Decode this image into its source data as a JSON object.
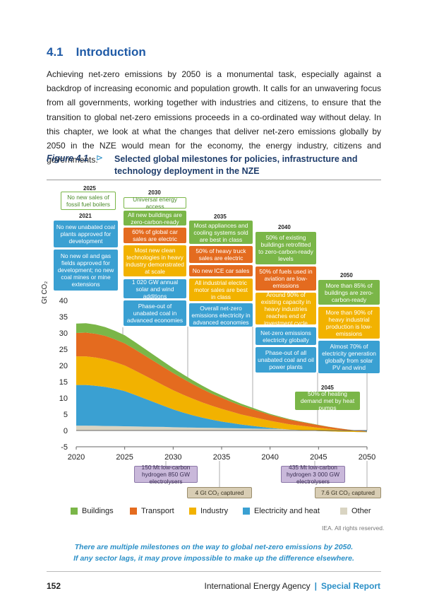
{
  "section": {
    "number": "4.1",
    "title": "Introduction"
  },
  "intro": "Achieving net-zero emissions by 2050 is a monumental task, especially against a backdrop of increasing economic and population growth. It calls for an unwavering focus from all governments, working together with industries and citizens, to ensure that the transition to global net-zero emissions proceeds in a co-ordinated way without delay. In this chapter, we look at what the changes that deliver net-zero emissions globally by 2050 in the NZE would mean for the economy, the energy industry, citizens and governments.",
  "figure": {
    "label": "Figure 4.1",
    "arrow": "⊳",
    "title": "Selected global milestones for policies, infrastructure and technology deployment in the NZE",
    "rights": "IEA. All rights reserved.",
    "caption_line1": "There are multiple milestones on the way to global net-zero emissions by 2050.",
    "caption_line2": "If any sector lags, it may prove impossible to make up the difference elsewhere."
  },
  "milestones": {
    "y2021": {
      "year": "2021",
      "items": [
        "No new unabated coal plants approved for development",
        "No new oil and gas fields approved for development; no new coal mines or mine extensions"
      ]
    },
    "y2025": {
      "year": "2025",
      "items": [
        "No new sales of fossil fuel boilers"
      ]
    },
    "y2030": {
      "year": "2030",
      "items": [
        "Universal energy access",
        "All new buildings are zero-carbon-ready",
        "60% of global car sales are electric",
        "Most new clean technologies in heavy industry demonstrated at scale",
        "1 020 GW annual solar and wind additions",
        "Phase-out of unabated coal in advanced economies"
      ]
    },
    "y2035": {
      "year": "2035",
      "items": [
        "Most appliances and cooling systems sold are best in class",
        "50% of heavy truck sales are electric",
        "No new ICE car sales",
        "All industrial electric motor sales are best in class",
        "Overall net-zero emissions electricity in advanced economies"
      ]
    },
    "y2040": {
      "year": "2040",
      "items": [
        "50% of existing buildings retrofitted to zero-carbon-ready levels",
        "50% of fuels used in aviation are low-emissions",
        "Around 90% of existing capacity in heavy industries reaches end of investment cycle",
        "Net-zero emissions electricity globally",
        "Phase-out of all unabated coal and oil power plants"
      ]
    },
    "y2045": {
      "year": "2045",
      "items": [
        "50% of heating demand met by heat pumps"
      ]
    },
    "y2050": {
      "year": "2050",
      "items": [
        "More than 85% of buildings are zero-carbon-ready",
        "More than 90% of heavy industrial production is low-emissions",
        "Almost 70% of electricity generation globally from solar PV and wind"
      ]
    },
    "bottom": [
      "150 Mt low-carbon hydrogen 850 GW electrolysers",
      "435 Mt low-carbon hydrogen 3 000 GW electrolysers",
      "4 Gt CO₂ captured",
      "7.6 Gt CO₂ captured"
    ]
  },
  "chart_data": {
    "type": "area",
    "stacked": true,
    "ylabel": "Gt CO₂",
    "ylim": [
      -5,
      40
    ],
    "yticks": [
      "-5",
      "0",
      "5",
      "10",
      "15",
      "20",
      "25",
      "30",
      "35",
      "40"
    ],
    "xticks": [
      "2020",
      "2025",
      "2030",
      "2035",
      "2040",
      "2045",
      "2050"
    ],
    "x": [
      2020,
      2021,
      2022,
      2023,
      2024,
      2025,
      2026,
      2027,
      2028,
      2029,
      2030,
      2031,
      2032,
      2033,
      2034,
      2035,
      2036,
      2037,
      2038,
      2039,
      2040,
      2041,
      2042,
      2043,
      2044,
      2045,
      2046,
      2047,
      2048,
      2049,
      2050
    ],
    "series": [
      {
        "name": "Other",
        "color": "#d9d4c2",
        "values": [
          1.5,
          1.5,
          1.45,
          1.4,
          1.35,
          1.3,
          1.25,
          1.2,
          1.15,
          1.1,
          1.0,
          0.95,
          0.9,
          0.85,
          0.8,
          0.75,
          0.7,
          0.65,
          0.6,
          0.55,
          0.5,
          0.45,
          0.4,
          0.35,
          0.3,
          0.25,
          0.2,
          0.15,
          0.1,
          0.05,
          0.0
        ]
      },
      {
        "name": "Electricity and heat",
        "color": "#3aa0d2",
        "values": [
          12.5,
          12.5,
          12.3,
          12.0,
          11.5,
          10.8,
          9.8,
          8.7,
          7.6,
          6.5,
          5.5,
          4.6,
          3.8,
          3.1,
          2.5,
          2.0,
          1.6,
          1.2,
          0.9,
          0.6,
          0.3,
          0.1,
          -0.1,
          -0.2,
          -0.3,
          -0.4,
          -0.45,
          -0.5,
          -0.5,
          -0.5,
          -0.5
        ]
      },
      {
        "name": "Industry",
        "color": "#f2b200",
        "values": [
          8.8,
          8.8,
          8.7,
          8.5,
          8.2,
          7.9,
          7.5,
          7.1,
          6.7,
          6.3,
          5.9,
          5.5,
          5.1,
          4.7,
          4.3,
          3.9,
          3.5,
          3.1,
          2.8,
          2.5,
          2.2,
          1.9,
          1.6,
          1.4,
          1.2,
          1.0,
          0.8,
          0.6,
          0.4,
          0.25,
          0.1
        ]
      },
      {
        "name": "Transport",
        "color": "#e46b1f",
        "values": [
          7.2,
          7.3,
          7.3,
          7.2,
          7.0,
          6.8,
          6.5,
          6.2,
          5.9,
          5.6,
          5.3,
          4.9,
          4.5,
          4.1,
          3.7,
          3.4,
          3.0,
          2.7,
          2.4,
          2.1,
          1.8,
          1.6,
          1.4,
          1.2,
          1.0,
          0.8,
          0.6,
          0.45,
          0.3,
          0.2,
          0.1
        ]
      },
      {
        "name": "Buildings",
        "color": "#7ab648",
        "values": [
          2.9,
          2.9,
          2.8,
          2.7,
          2.6,
          2.5,
          2.3,
          2.1,
          1.9,
          1.7,
          1.5,
          1.35,
          1.2,
          1.05,
          0.9,
          0.8,
          0.7,
          0.6,
          0.5,
          0.4,
          0.3,
          0.25,
          0.2,
          0.15,
          0.1,
          0.08,
          0.05,
          0.03,
          0.02,
          0.01,
          0.0
        ]
      }
    ],
    "legend": [
      "Buildings",
      "Transport",
      "Industry",
      "Electricity and heat",
      "Other"
    ],
    "legend_colors": [
      "#7ab648",
      "#e46b1f",
      "#f2b200",
      "#3aa0d2",
      "#d9d4c2"
    ],
    "legend_position": "bottom"
  },
  "footer": {
    "page": "152",
    "publisher": "International Energy Agency",
    "pipe": "|",
    "report": "Special Report"
  }
}
